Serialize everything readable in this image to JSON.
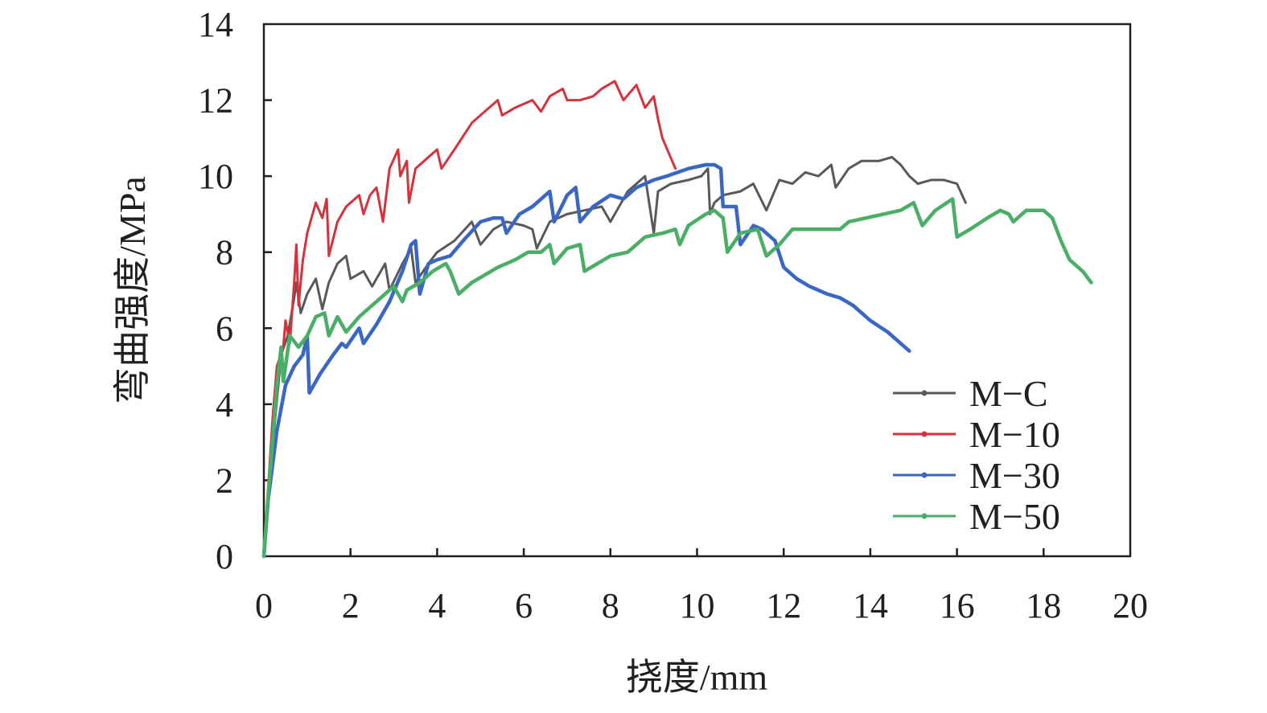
{
  "chart_data": {
    "type": "line",
    "title": "",
    "xlabel": "挠度/mm",
    "ylabel": "弯曲强度/MPa",
    "xlim": [
      0,
      20
    ],
    "ylim": [
      0,
      14
    ],
    "xticks": [
      0,
      2,
      4,
      6,
      8,
      10,
      12,
      14,
      16,
      18,
      20
    ],
    "yticks": [
      0,
      2,
      4,
      6,
      8,
      10,
      12,
      14
    ],
    "grid": false,
    "legend_position": "lower-right",
    "series": [
      {
        "name": "M−C",
        "color": "#595959",
        "points": [
          [
            0,
            0
          ],
          [
            0.1,
            1.5
          ],
          [
            0.25,
            3.5
          ],
          [
            0.4,
            5.3
          ],
          [
            0.55,
            5.8
          ],
          [
            0.7,
            6.8
          ],
          [
            0.75,
            7.2
          ],
          [
            0.85,
            6.4
          ],
          [
            1.0,
            6.9
          ],
          [
            1.2,
            7.3
          ],
          [
            1.35,
            6.5
          ],
          [
            1.5,
            7.2
          ],
          [
            1.7,
            7.7
          ],
          [
            1.9,
            7.9
          ],
          [
            2.0,
            7.3
          ],
          [
            2.3,
            7.5
          ],
          [
            2.5,
            7.1
          ],
          [
            2.8,
            7.7
          ],
          [
            2.9,
            7.0
          ],
          [
            3.2,
            7.7
          ],
          [
            3.4,
            8.1
          ],
          [
            3.5,
            7.2
          ],
          [
            3.8,
            7.7
          ],
          [
            4.0,
            8.0
          ],
          [
            4.4,
            8.3
          ],
          [
            4.8,
            8.8
          ],
          [
            5.0,
            8.2
          ],
          [
            5.3,
            8.6
          ],
          [
            5.6,
            8.8
          ],
          [
            6.0,
            8.7
          ],
          [
            6.2,
            8.6
          ],
          [
            6.3,
            8.1
          ],
          [
            6.6,
            8.8
          ],
          [
            7.0,
            9.0
          ],
          [
            7.4,
            9.1
          ],
          [
            7.8,
            9.2
          ],
          [
            8.0,
            8.8
          ],
          [
            8.4,
            9.6
          ],
          [
            8.8,
            10.0
          ],
          [
            9.0,
            8.5
          ],
          [
            9.1,
            9.6
          ],
          [
            9.4,
            9.8
          ],
          [
            9.8,
            9.9
          ],
          [
            10.1,
            10.0
          ],
          [
            10.25,
            10.2
          ],
          [
            10.3,
            9.0
          ],
          [
            10.4,
            9.3
          ],
          [
            10.6,
            9.5
          ],
          [
            11.0,
            9.6
          ],
          [
            11.3,
            9.8
          ],
          [
            11.6,
            9.1
          ],
          [
            11.9,
            9.9
          ],
          [
            12.2,
            9.8
          ],
          [
            12.5,
            10.1
          ],
          [
            12.8,
            10.0
          ],
          [
            13.1,
            10.3
          ],
          [
            13.2,
            9.7
          ],
          [
            13.5,
            10.2
          ],
          [
            13.8,
            10.4
          ],
          [
            14.2,
            10.4
          ],
          [
            14.5,
            10.5
          ],
          [
            14.7,
            10.3
          ],
          [
            14.9,
            10.0
          ],
          [
            15.1,
            9.8
          ],
          [
            15.4,
            9.9
          ],
          [
            15.7,
            9.9
          ],
          [
            16.0,
            9.8
          ],
          [
            16.2,
            9.3
          ]
        ]
      },
      {
        "name": "M−10",
        "color": "#d6323c",
        "points": [
          [
            0,
            0
          ],
          [
            0.1,
            1.8
          ],
          [
            0.2,
            3.6
          ],
          [
            0.3,
            5.0
          ],
          [
            0.45,
            5.5
          ],
          [
            0.5,
            6.2
          ],
          [
            0.6,
            5.6
          ],
          [
            0.7,
            7.2
          ],
          [
            0.75,
            8.2
          ],
          [
            0.8,
            6.6
          ],
          [
            0.9,
            7.8
          ],
          [
            1.0,
            8.5
          ],
          [
            1.1,
            8.9
          ],
          [
            1.2,
            9.3
          ],
          [
            1.35,
            8.9
          ],
          [
            1.45,
            9.4
          ],
          [
            1.5,
            7.9
          ],
          [
            1.7,
            8.8
          ],
          [
            1.9,
            9.2
          ],
          [
            2.2,
            9.5
          ],
          [
            2.3,
            9.0
          ],
          [
            2.45,
            9.5
          ],
          [
            2.6,
            9.7
          ],
          [
            2.75,
            8.8
          ],
          [
            2.9,
            10.2
          ],
          [
            3.1,
            10.7
          ],
          [
            3.15,
            10.0
          ],
          [
            3.3,
            10.4
          ],
          [
            3.35,
            9.3
          ],
          [
            3.5,
            10.2
          ],
          [
            3.8,
            10.5
          ],
          [
            4.0,
            10.7
          ],
          [
            4.1,
            10.2
          ],
          [
            4.4,
            10.7
          ],
          [
            4.8,
            11.4
          ],
          [
            5.2,
            11.8
          ],
          [
            5.4,
            12.0
          ],
          [
            5.5,
            11.6
          ],
          [
            5.8,
            11.8
          ],
          [
            6.0,
            11.9
          ],
          [
            6.2,
            12.0
          ],
          [
            6.4,
            11.7
          ],
          [
            6.6,
            12.1
          ],
          [
            6.9,
            12.3
          ],
          [
            7.0,
            12.0
          ],
          [
            7.3,
            12.0
          ],
          [
            7.6,
            12.1
          ],
          [
            7.8,
            12.3
          ],
          [
            8.1,
            12.5
          ],
          [
            8.3,
            12.0
          ],
          [
            8.6,
            12.4
          ],
          [
            8.8,
            11.8
          ],
          [
            9.0,
            12.1
          ],
          [
            9.1,
            11.5
          ],
          [
            9.2,
            11.0
          ],
          [
            9.35,
            10.6
          ],
          [
            9.5,
            10.2
          ]
        ]
      },
      {
        "name": "M−30",
        "color": "#3a67c3",
        "points": [
          [
            0,
            0
          ],
          [
            0.1,
            1.5
          ],
          [
            0.3,
            3.3
          ],
          [
            0.5,
            4.5
          ],
          [
            0.7,
            5.0
          ],
          [
            0.9,
            5.3
          ],
          [
            1.0,
            5.8
          ],
          [
            1.05,
            4.3
          ],
          [
            1.3,
            4.8
          ],
          [
            1.6,
            5.3
          ],
          [
            1.8,
            5.6
          ],
          [
            1.9,
            5.5
          ],
          [
            2.2,
            6.0
          ],
          [
            2.3,
            5.6
          ],
          [
            2.6,
            6.1
          ],
          [
            2.9,
            6.7
          ],
          [
            3.2,
            7.5
          ],
          [
            3.4,
            8.2
          ],
          [
            3.5,
            8.3
          ],
          [
            3.6,
            6.9
          ],
          [
            3.8,
            7.7
          ],
          [
            4.0,
            7.8
          ],
          [
            4.3,
            7.9
          ],
          [
            4.6,
            8.3
          ],
          [
            5.0,
            8.8
          ],
          [
            5.3,
            8.9
          ],
          [
            5.5,
            8.9
          ],
          [
            5.6,
            8.5
          ],
          [
            5.9,
            9.0
          ],
          [
            6.2,
            9.2
          ],
          [
            6.6,
            9.6
          ],
          [
            6.7,
            8.8
          ],
          [
            7.0,
            9.5
          ],
          [
            7.2,
            9.7
          ],
          [
            7.3,
            8.8
          ],
          [
            7.6,
            9.2
          ],
          [
            8.0,
            9.5
          ],
          [
            8.3,
            9.4
          ],
          [
            8.6,
            9.7
          ],
          [
            9.0,
            9.9
          ],
          [
            9.3,
            10.0
          ],
          [
            9.8,
            10.2
          ],
          [
            10.2,
            10.3
          ],
          [
            10.4,
            10.3
          ],
          [
            10.55,
            10.2
          ],
          [
            10.6,
            9.2
          ],
          [
            10.9,
            9.2
          ],
          [
            11.0,
            8.2
          ],
          [
            11.3,
            8.7
          ],
          [
            11.5,
            8.6
          ],
          [
            11.8,
            8.3
          ],
          [
            12.0,
            7.6
          ],
          [
            12.3,
            7.3
          ],
          [
            12.6,
            7.1
          ],
          [
            13.0,
            6.9
          ],
          [
            13.3,
            6.8
          ],
          [
            13.6,
            6.6
          ],
          [
            14.0,
            6.2
          ],
          [
            14.4,
            5.9
          ],
          [
            14.7,
            5.6
          ],
          [
            14.9,
            5.4
          ]
        ]
      },
      {
        "name": "M−50",
        "color": "#4aae67",
        "points": [
          [
            0,
            0
          ],
          [
            0.1,
            1.6
          ],
          [
            0.2,
            3.0
          ],
          [
            0.3,
            4.5
          ],
          [
            0.4,
            5.5
          ],
          [
            0.45,
            4.6
          ],
          [
            0.6,
            5.8
          ],
          [
            0.8,
            5.5
          ],
          [
            1.0,
            5.8
          ],
          [
            1.2,
            6.3
          ],
          [
            1.4,
            6.4
          ],
          [
            1.5,
            5.8
          ],
          [
            1.7,
            6.3
          ],
          [
            1.9,
            5.9
          ],
          [
            2.2,
            6.3
          ],
          [
            2.5,
            6.6
          ],
          [
            2.8,
            6.9
          ],
          [
            3.0,
            7.1
          ],
          [
            3.2,
            6.7
          ],
          [
            3.3,
            7.0
          ],
          [
            3.6,
            7.2
          ],
          [
            3.9,
            7.5
          ],
          [
            4.2,
            7.7
          ],
          [
            4.3,
            7.5
          ],
          [
            4.5,
            6.9
          ],
          [
            4.8,
            7.2
          ],
          [
            5.1,
            7.4
          ],
          [
            5.4,
            7.6
          ],
          [
            5.8,
            7.8
          ],
          [
            6.1,
            8.0
          ],
          [
            6.4,
            8.0
          ],
          [
            6.6,
            8.2
          ],
          [
            6.7,
            7.7
          ],
          [
            7.0,
            8.1
          ],
          [
            7.3,
            8.2
          ],
          [
            7.4,
            7.5
          ],
          [
            7.7,
            7.7
          ],
          [
            8.0,
            7.9
          ],
          [
            8.4,
            8.0
          ],
          [
            8.8,
            8.4
          ],
          [
            9.2,
            8.5
          ],
          [
            9.5,
            8.6
          ],
          [
            9.6,
            8.2
          ],
          [
            9.8,
            8.7
          ],
          [
            10.2,
            9.0
          ],
          [
            10.4,
            9.1
          ],
          [
            10.6,
            8.9
          ],
          [
            10.7,
            8.0
          ],
          [
            11.0,
            8.5
          ],
          [
            11.4,
            8.6
          ],
          [
            11.6,
            7.9
          ],
          [
            11.9,
            8.2
          ],
          [
            12.2,
            8.6
          ],
          [
            12.6,
            8.6
          ],
          [
            13.0,
            8.6
          ],
          [
            13.3,
            8.6
          ],
          [
            13.5,
            8.8
          ],
          [
            13.9,
            8.9
          ],
          [
            14.3,
            9.0
          ],
          [
            14.7,
            9.1
          ],
          [
            15.0,
            9.3
          ],
          [
            15.2,
            8.7
          ],
          [
            15.5,
            9.1
          ],
          [
            15.9,
            9.4
          ],
          [
            16.0,
            8.4
          ],
          [
            16.3,
            8.6
          ],
          [
            16.7,
            8.9
          ],
          [
            17.0,
            9.1
          ],
          [
            17.2,
            9.0
          ],
          [
            17.3,
            8.8
          ],
          [
            17.6,
            9.1
          ],
          [
            18.0,
            9.1
          ],
          [
            18.2,
            8.9
          ],
          [
            18.4,
            8.3
          ],
          [
            18.6,
            7.8
          ],
          [
            18.9,
            7.5
          ],
          [
            19.1,
            7.2
          ]
        ]
      }
    ]
  }
}
